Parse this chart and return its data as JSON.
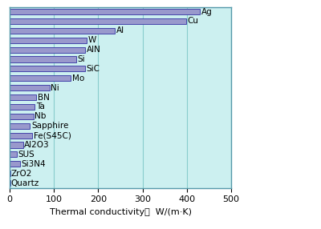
{
  "materials": [
    "Quartz",
    "ZrO2",
    "Si3N4",
    "SUS",
    "Al2O3",
    "Fe(S45C)",
    "Sapphire",
    "Nb",
    "Ta",
    "BN",
    "Ni",
    "Mo",
    "SiC",
    "Si",
    "AlN",
    "W",
    "Al",
    "Cu",
    "Ag"
  ],
  "values": [
    1.4,
    2,
    23,
    16,
    30,
    51,
    46,
    54,
    57,
    60,
    90,
    138,
    170,
    150,
    170,
    174,
    237,
    398,
    429
  ],
  "bar_fill_color": "#9999cc",
  "bar_edge_color": "#4444aa",
  "bg_outer": "#ffffff",
  "bg_plot": "#ccf0f0",
  "xlabel": "Thermal conductivity／  W/(m·K)",
  "xlim": [
    0,
    500
  ],
  "xticks": [
    0,
    100,
    200,
    300,
    400,
    500
  ],
  "grid_color": "#88cccc",
  "border_color": "#5599aa",
  "label_fontsize": 7.5,
  "tick_fontsize": 8
}
